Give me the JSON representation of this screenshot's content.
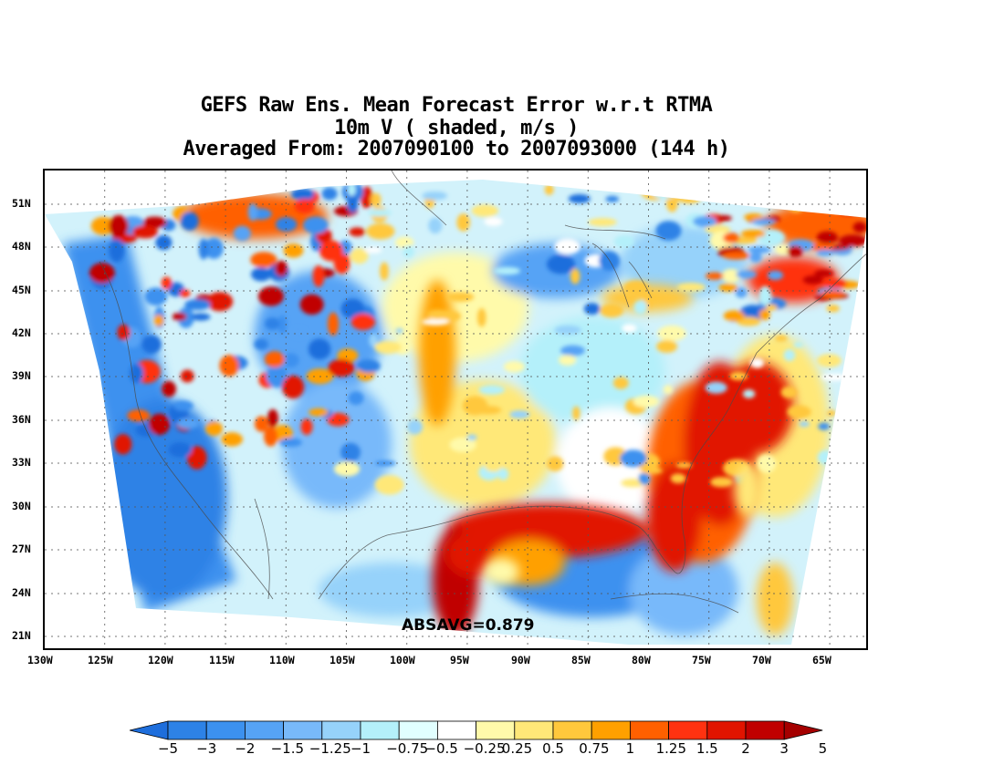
{
  "title": {
    "line1": "GEFS Raw Ens. Mean Forecast Error w.r.t RTMA",
    "line2": "10m V ( shaded, m/s )",
    "line3": "Averaged From: 2007090100 to 2007093000 (144 h)"
  },
  "map": {
    "lat_labels": [
      "51N",
      "48N",
      "45N",
      "42N",
      "39N",
      "36N",
      "33N",
      "30N",
      "27N",
      "24N",
      "21N"
    ],
    "lon_labels": [
      "130W",
      "125W",
      "120W",
      "115W",
      "110W",
      "105W",
      "100W",
      "95W",
      "90W",
      "85W",
      "80W",
      "75W",
      "70W",
      "65W"
    ],
    "absavg_text": "ABSAVG=0.879"
  },
  "colorbar": {
    "labels": [
      "-5",
      "-3",
      "-2",
      "-1.5",
      "-1.25",
      "-1",
      "-0.75",
      "-0.5",
      "-0.25",
      "0.25",
      "0.5",
      "0.75",
      "1",
      "1.25",
      "1.5",
      "2",
      "3",
      "5"
    ],
    "colors": [
      "#1e6edc",
      "#2d82e6",
      "#3c91ef",
      "#56a3f5",
      "#78b9fa",
      "#96d2fa",
      "#b4f0fa",
      "#e1ffff",
      "#ffffff",
      "#fffaaa",
      "#ffe878",
      "#ffc83c",
      "#ffa000",
      "#ff6000",
      "#ff3210",
      "#e11400",
      "#c00000",
      "#a50000"
    ]
  }
}
